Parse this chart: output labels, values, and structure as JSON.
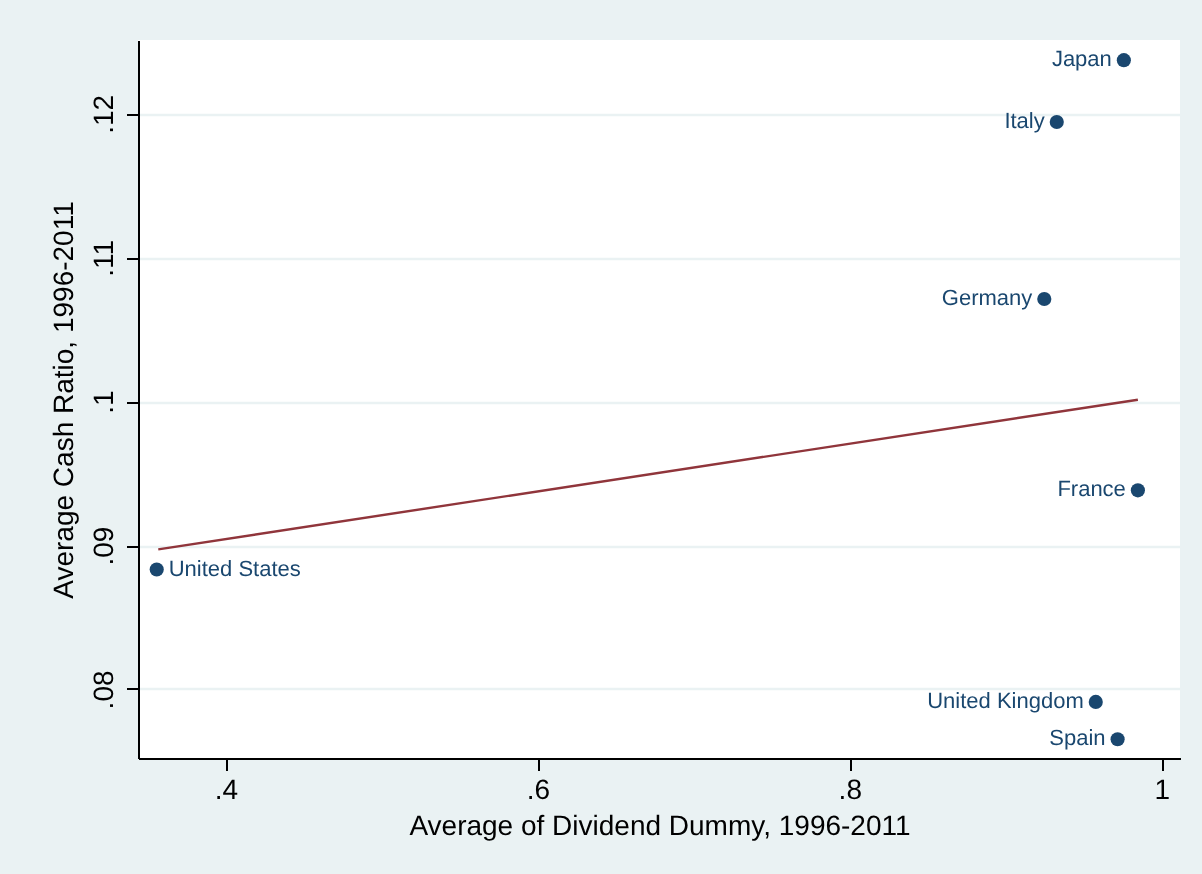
{
  "chart_data": {
    "type": "scatter",
    "xlabel": "Average of Dividend Dummy, 1996-2011",
    "ylabel": "Average Cash Ratio, 1996-2011",
    "xlim": [
      0.344,
      1.012
    ],
    "ylim": [
      0.0752,
      0.1251
    ],
    "xticks": [
      {
        "value": 0.4,
        "label": ".4"
      },
      {
        "value": 0.6,
        "label": ".6"
      },
      {
        "value": 0.8,
        "label": ".8"
      },
      1
    ],
    "yticks": [
      {
        "value": 0.08,
        "label": ".08"
      },
      {
        "value": 0.09,
        "label": ".09"
      },
      {
        "value": 0.1,
        "label": ".1"
      },
      {
        "value": 0.11,
        "label": ".11"
      },
      {
        "value": 0.12,
        "label": ".12"
      }
    ],
    "grid": "y",
    "series": [
      {
        "marker": "circle",
        "color": "#1a476f",
        "x": [
          0.976,
          0.933,
          0.925,
          0.985,
          0.356,
          0.958,
          0.972
        ],
        "values": [
          0.1237,
          0.1194,
          0.1071,
          0.0938,
          0.0883,
          0.0791,
          0.0765
        ]
      },
      {
        "type": "line",
        "color": "#90353b",
        "line_style": "solid",
        "x": [
          0.357,
          0.985
        ],
        "values": [
          0.0897,
          0.1001
        ]
      }
    ],
    "annotations": [
      {
        "text": "Japan",
        "x": 0.976,
        "y": 0.1237
      },
      {
        "text": "Italy",
        "x": 0.933,
        "y": 0.1194
      },
      {
        "text": "Germany",
        "x": 0.925,
        "y": 0.1071
      },
      {
        "text": "France",
        "x": 0.985,
        "y": 0.0938
      },
      {
        "text": "United States",
        "x": 0.356,
        "y": 0.0883
      },
      {
        "text": "United Kingdom",
        "x": 0.958,
        "y": 0.0791
      },
      {
        "text": "Spain",
        "x": 0.972,
        "y": 0.0765
      }
    ]
  }
}
